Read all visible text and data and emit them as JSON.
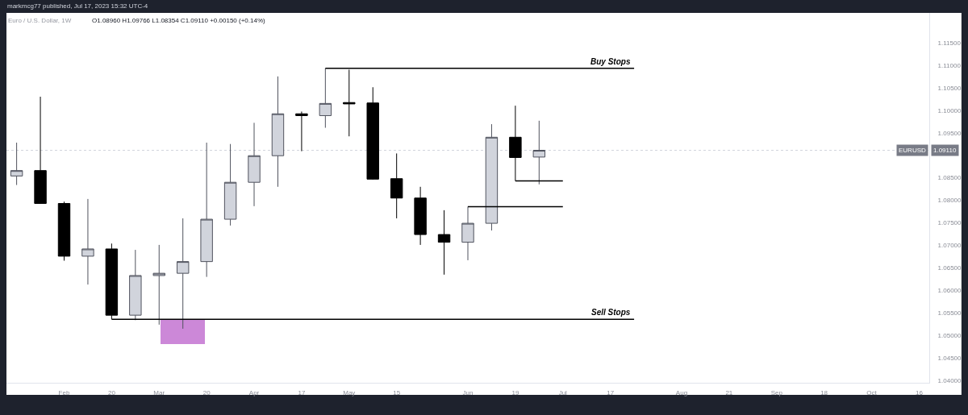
{
  "chart_data": {
    "type": "candlestick",
    "title": "Euro / U.S. Dollar, 1W",
    "subtitle": "O1.08960 H1.09766 L1.08354 C1.09110 +0.00150 (+0.14%)",
    "annotations": [
      "markmcg77 published, Jul 17, 2023 15:32 UTC-4",
      {
        "text": "1.09110",
        "y": 1.0911
      }
    ],
    "x": [
      "2023-01-23",
      "2023-01-30",
      "2023-02-06",
      "2023-02-13",
      "2023-02-20",
      "2023-02-27",
      "2023-03-06",
      "2023-03-13",
      "2023-03-20",
      "2023-03-27",
      "2023-04-03",
      "2023-04-10",
      "2023-04-17",
      "2023-04-24",
      "2023-05-01",
      "2023-05-08",
      "2023-05-15",
      "2023-05-22",
      "2023-05-29",
      "2023-06-05",
      "2023-06-12",
      "2023-06-19",
      "2023-06-26"
    ],
    "ohlc": [
      [
        1.0854,
        1.0928,
        1.0834,
        1.0866
      ],
      [
        1.0866,
        1.103,
        1.0792,
        1.0793
      ],
      [
        1.0793,
        1.0797,
        1.0666,
        1.0676
      ],
      [
        1.0676,
        1.0803,
        1.0613,
        1.0692
      ],
      [
        1.0692,
        1.0704,
        1.0536,
        1.0545
      ],
      [
        1.0545,
        1.069,
        1.0534,
        1.0633
      ],
      [
        1.0633,
        1.0701,
        1.0524,
        1.0638
      ],
      [
        1.0638,
        1.076,
        1.0515,
        1.0664
      ],
      [
        1.0664,
        1.0928,
        1.063,
        1.0758
      ],
      [
        1.0758,
        1.0925,
        1.0744,
        1.084
      ],
      [
        1.084,
        1.0972,
        1.0787,
        1.0899
      ],
      [
        1.0899,
        1.1075,
        1.083,
        1.0992
      ],
      [
        1.0992,
        1.0997,
        1.0909,
        1.0988
      ],
      [
        1.0988,
        1.1093,
        1.0961,
        1.1015
      ],
      [
        1.1017,
        1.109,
        1.0942,
        1.1014
      ],
      [
        1.1016,
        1.1051,
        1.0846,
        1.0847
      ],
      [
        1.0848,
        1.0904,
        1.076,
        1.0805
      ],
      [
        1.0805,
        1.083,
        1.0701,
        1.0724
      ],
      [
        1.0724,
        1.0778,
        1.0635,
        1.0707
      ],
      [
        1.0707,
        1.0786,
        1.0667,
        1.0749
      ],
      [
        1.0749,
        1.0969,
        1.0733,
        1.094
      ],
      [
        1.094,
        1.101,
        1.0843,
        1.0895
      ],
      [
        1.0896,
        1.09766,
        1.08354,
        1.0911
      ]
    ],
    "colors": [
      "#d1d4dc",
      "#000000",
      "#000000",
      "#d1d4dc",
      "#000000",
      "#d1d4dc",
      "#d1d4dc",
      "#d1d4dc",
      "#d1d4dc",
      "#d1d4dc",
      "#d1d4dc",
      "#d1d4dc",
      "#000000",
      "#d1d4dc",
      "#000000",
      "#000000",
      "#000000",
      "#000000",
      "#000000",
      "#d1d4dc",
      "#d1d4dc",
      "#000000",
      "#d1d4dc"
    ],
    "series": [
      {
        "type": "bar",
        "x": [
          "2023-03-13"
        ],
        "base": [
          1.0481
        ],
        "values": [
          0.0055
        ],
        "color": "#cc88d8"
      },
      {
        "type": "line",
        "name": "Buy Stops",
        "x": [
          "2023-04-24",
          "2023-07-24"
        ],
        "values": [
          1.1093,
          1.1093
        ],
        "color": "#000000"
      },
      {
        "type": "line",
        "name": "Sell Stops",
        "x": [
          "2023-02-20",
          "2023-07-24"
        ],
        "values": [
          1.0536,
          1.0536
        ],
        "color": "#000000"
      },
      {
        "type": "line",
        "x": [
          "2023-06-05",
          "2023-07-03"
        ],
        "values": [
          1.0786,
          1.0786
        ],
        "color": "#000000"
      },
      {
        "type": "line",
        "x": [
          "2023-06-19",
          "2023-07-03"
        ],
        "values": [
          1.0843,
          1.0843
        ],
        "color": "#000000"
      }
    ],
    "ref_lines": [
      {
        "axis": "y",
        "value": 1.0911,
        "label": "EURUSD",
        "color": "#d1d4dc",
        "line_style": "dotted"
      }
    ],
    "xlim": [
      "2023-01-20",
      "2023-10-19"
    ],
    "xticks": [
      {
        "value": "2023-02-06",
        "label": "Feb"
      },
      {
        "value": "2023-02-20",
        "label": "20"
      },
      {
        "value": "2023-03-06",
        "label": "Mar"
      },
      {
        "value": "2023-03-20",
        "label": "20"
      },
      {
        "value": "2023-04-03",
        "label": "Apr"
      },
      {
        "value": "2023-04-17",
        "label": "17"
      },
      {
        "value": "2023-05-01",
        "label": "May"
      },
      {
        "value": "2023-05-15",
        "label": "15"
      },
      {
        "value": "2023-06-05",
        "label": "Jun"
      },
      {
        "value": "2023-06-19",
        "label": "19"
      },
      {
        "value": "2023-07-03",
        "label": "Jul"
      },
      {
        "value": "2023-07-17",
        "label": "17"
      },
      {
        "value": "2023-08-07",
        "label": "Aug"
      },
      {
        "value": "2023-08-21",
        "label": "21"
      },
      {
        "value": "2023-09-04",
        "label": "Sep"
      },
      {
        "value": "2023-09-18",
        "label": "18"
      },
      {
        "value": "2023-10-02",
        "label": "Oct"
      },
      {
        "value": "2023-10-16",
        "label": "16"
      }
    ],
    "ylim": [
      1.0395,
      1.1216
    ],
    "yticks": [
      {
        "value": 1.04,
        "label": "1.04000"
      },
      {
        "value": 1.045,
        "label": "1.04500"
      },
      {
        "value": 1.05,
        "label": "1.05000"
      },
      {
        "value": 1.055,
        "label": "1.05500"
      },
      {
        "value": 1.06,
        "label": "1.06000"
      },
      {
        "value": 1.065,
        "label": "1.06500"
      },
      {
        "value": 1.07,
        "label": "1.07000"
      },
      {
        "value": 1.075,
        "label": "1.07500"
      },
      {
        "value": 1.08,
        "label": "1.08000"
      },
      {
        "value": 1.085,
        "label": "1.08500"
      },
      {
        "value": 1.095,
        "label": "1.09500"
      },
      {
        "value": 1.1,
        "label": "1.10000"
      },
      {
        "value": 1.105,
        "label": "1.10500"
      },
      {
        "value": 1.11,
        "label": "1.11000"
      },
      {
        "value": 1.115,
        "label": "1.11500"
      }
    ],
    "grid": false,
    "marker": "none"
  }
}
